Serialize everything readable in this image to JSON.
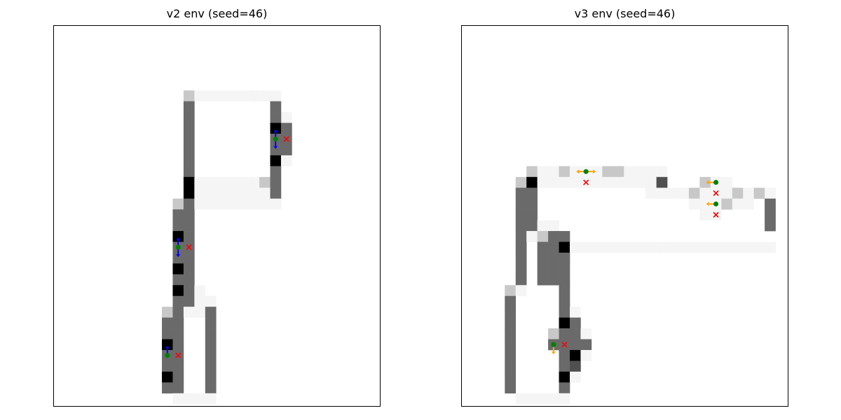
{
  "chart_data": [
    {
      "type": "heatmap",
      "title": "v2 env (seed=46)",
      "xlabel": "",
      "ylabel": "",
      "grid": false,
      "colors": {
        "dark": "#6a6a6a",
        "black": "#000000",
        "light": "#c8c8c8",
        "faint": "#f5f5f5",
        "agent": "#008000",
        "target": "#ff0000",
        "heading": "#0000ff"
      },
      "cells": [
        [
          12,
          6,
          "light"
        ],
        [
          13,
          6,
          "faint"
        ],
        [
          14,
          6,
          "faint"
        ],
        [
          15,
          6,
          "faint"
        ],
        [
          16,
          6,
          "faint"
        ],
        [
          17,
          6,
          "faint"
        ],
        [
          18,
          6,
          "faint"
        ],
        [
          19,
          6,
          "faint"
        ],
        [
          20,
          6,
          "faint"
        ],
        [
          12,
          7,
          "dark"
        ],
        [
          20,
          7,
          "dark"
        ],
        [
          21,
          8,
          "faint"
        ],
        [
          12,
          8,
          "dark"
        ],
        [
          20,
          8,
          "dark"
        ],
        [
          12,
          9,
          "dark"
        ],
        [
          20,
          9,
          "black"
        ],
        [
          21,
          9,
          "dark"
        ],
        [
          12,
          10,
          "dark"
        ],
        [
          20,
          10,
          "dark"
        ],
        [
          21,
          10,
          "dark"
        ],
        [
          12,
          11,
          "dark"
        ],
        [
          20,
          11,
          "dark"
        ],
        [
          21,
          11,
          "dark"
        ],
        [
          12,
          12,
          "dark"
        ],
        [
          20,
          12,
          "black"
        ],
        [
          21,
          12,
          "faint"
        ],
        [
          12,
          13,
          "dark"
        ],
        [
          20,
          13,
          "dark"
        ],
        [
          12,
          14,
          "black"
        ],
        [
          13,
          14,
          "faint"
        ],
        [
          14,
          14,
          "faint"
        ],
        [
          15,
          14,
          "faint"
        ],
        [
          16,
          14,
          "faint"
        ],
        [
          17,
          14,
          "faint"
        ],
        [
          18,
          14,
          "faint"
        ],
        [
          19,
          14,
          "light"
        ],
        [
          20,
          14,
          "dark"
        ],
        [
          12,
          15,
          "black"
        ],
        [
          13,
          15,
          "faint"
        ],
        [
          14,
          15,
          "faint"
        ],
        [
          15,
          15,
          "faint"
        ],
        [
          16,
          15,
          "faint"
        ],
        [
          17,
          15,
          "faint"
        ],
        [
          18,
          15,
          "faint"
        ],
        [
          19,
          15,
          "faint"
        ],
        [
          20,
          15,
          "dark"
        ],
        [
          11,
          16,
          "light"
        ],
        [
          12,
          16,
          "dark"
        ],
        [
          13,
          16,
          "faint"
        ],
        [
          14,
          16,
          "faint"
        ],
        [
          15,
          16,
          "faint"
        ],
        [
          16,
          16,
          "faint"
        ],
        [
          17,
          16,
          "faint"
        ],
        [
          18,
          16,
          "faint"
        ],
        [
          19,
          16,
          "faint"
        ],
        [
          20,
          16,
          "faint"
        ],
        [
          11,
          17,
          "dark"
        ],
        [
          12,
          17,
          "dark"
        ],
        [
          11,
          18,
          "dark"
        ],
        [
          12,
          18,
          "dark"
        ],
        [
          11,
          19,
          "black"
        ],
        [
          12,
          19,
          "dark"
        ],
        [
          11,
          20,
          "dark"
        ],
        [
          12,
          20,
          "dark"
        ],
        [
          11,
          21,
          "dark"
        ],
        [
          12,
          21,
          "dark"
        ],
        [
          11,
          22,
          "black"
        ],
        [
          12,
          22,
          "dark"
        ],
        [
          11,
          23,
          "dark"
        ],
        [
          12,
          23,
          "dark"
        ],
        [
          11,
          24,
          "black"
        ],
        [
          12,
          24,
          "dark"
        ],
        [
          13,
          24,
          "faint"
        ],
        [
          11,
          25,
          "dark"
        ],
        [
          12,
          25,
          "dark"
        ],
        [
          13,
          25,
          "faint"
        ],
        [
          14,
          25,
          "faint"
        ],
        [
          10,
          26,
          "light"
        ],
        [
          11,
          26,
          "dark"
        ],
        [
          12,
          26,
          "faint"
        ],
        [
          13,
          26,
          "faint"
        ],
        [
          14,
          26,
          "dark"
        ],
        [
          10,
          27,
          "dark"
        ],
        [
          11,
          27,
          "dark"
        ],
        [
          14,
          27,
          "dark"
        ],
        [
          10,
          28,
          "dark"
        ],
        [
          11,
          28,
          "dark"
        ],
        [
          14,
          28,
          "dark"
        ],
        [
          10,
          29,
          "black"
        ],
        [
          11,
          29,
          "dark"
        ],
        [
          14,
          29,
          "dark"
        ],
        [
          10,
          30,
          "dark"
        ],
        [
          11,
          30,
          "dark"
        ],
        [
          14,
          30,
          "dark"
        ],
        [
          10,
          31,
          "dark"
        ],
        [
          11,
          31,
          "dark"
        ],
        [
          14,
          31,
          "dark"
        ],
        [
          10,
          32,
          "black"
        ],
        [
          11,
          32,
          "dark"
        ],
        [
          14,
          32,
          "dark"
        ],
        [
          10,
          33,
          "dark"
        ],
        [
          11,
          33,
          "dark"
        ],
        [
          14,
          33,
          "dark"
        ],
        [
          11,
          34,
          "faint"
        ],
        [
          12,
          34,
          "faint"
        ],
        [
          13,
          34,
          "faint"
        ],
        [
          14,
          34,
          "faint"
        ]
      ],
      "agents": [
        {
          "x": 20.5,
          "y": 10.5,
          "dir": "vertical"
        },
        {
          "x": 11.5,
          "y": 20.5,
          "dir": "vertical"
        },
        {
          "x": 10.5,
          "y": 30.5,
          "dir": "up"
        }
      ],
      "targets": [
        {
          "x": 21.5,
          "y": 10.5
        },
        {
          "x": 12.5,
          "y": 20.5
        },
        {
          "x": 11.5,
          "y": 30.5
        }
      ]
    },
    {
      "type": "heatmap",
      "title": "v3 env (seed=46)",
      "xlabel": "",
      "ylabel": "",
      "grid": false,
      "colors": {
        "dark": "#6a6a6a",
        "black": "#000000",
        "light": "#c8c8c8",
        "mid": "#505050",
        "faint": "#f5f5f5",
        "agent": "#008000",
        "target": "#ff0000",
        "heading": "#ffa500"
      },
      "cells": [
        [
          6,
          13,
          "light"
        ],
        [
          7,
          13,
          "faint"
        ],
        [
          8,
          13,
          "faint"
        ],
        [
          9,
          13,
          "light"
        ],
        [
          10,
          13,
          "faint"
        ],
        [
          11,
          13,
          "faint"
        ],
        [
          12,
          13,
          "faint"
        ],
        [
          13,
          13,
          "light"
        ],
        [
          14,
          13,
          "light"
        ],
        [
          15,
          13,
          "faint"
        ],
        [
          16,
          13,
          "faint"
        ],
        [
          17,
          13,
          "faint"
        ],
        [
          18,
          13,
          "faint"
        ],
        [
          5,
          14,
          "light"
        ],
        [
          6,
          14,
          "black"
        ],
        [
          7,
          14,
          "faint"
        ],
        [
          8,
          14,
          "faint"
        ],
        [
          9,
          14,
          "faint"
        ],
        [
          10,
          14,
          "faint"
        ],
        [
          11,
          14,
          "faint"
        ],
        [
          12,
          14,
          "faint"
        ],
        [
          13,
          14,
          "faint"
        ],
        [
          14,
          14,
          "faint"
        ],
        [
          15,
          14,
          "faint"
        ],
        [
          16,
          14,
          "faint"
        ],
        [
          17,
          14,
          "faint"
        ],
        [
          18,
          14,
          "mid"
        ],
        [
          22,
          14,
          "light"
        ],
        [
          23,
          14,
          "faint"
        ],
        [
          24,
          14,
          "faint"
        ],
        [
          5,
          15,
          "dark"
        ],
        [
          6,
          15,
          "dark"
        ],
        [
          17,
          15,
          "faint"
        ],
        [
          18,
          15,
          "faint"
        ],
        [
          19,
          15,
          "faint"
        ],
        [
          20,
          15,
          "faint"
        ],
        [
          21,
          15,
          "light"
        ],
        [
          22,
          15,
          "faint"
        ],
        [
          23,
          15,
          "faint"
        ],
        [
          24,
          15,
          "faint"
        ],
        [
          25,
          15,
          "light"
        ],
        [
          26,
          15,
          "faint"
        ],
        [
          27,
          15,
          "light"
        ],
        [
          28,
          15,
          "faint"
        ],
        [
          5,
          16,
          "dark"
        ],
        [
          6,
          16,
          "dark"
        ],
        [
          21,
          16,
          "faint"
        ],
        [
          22,
          16,
          "faint"
        ],
        [
          23,
          16,
          "faint"
        ],
        [
          24,
          16,
          "light"
        ],
        [
          25,
          16,
          "faint"
        ],
        [
          26,
          16,
          "faint"
        ],
        [
          28,
          16,
          "dark"
        ],
        [
          5,
          17,
          "dark"
        ],
        [
          6,
          17,
          "dark"
        ],
        [
          22,
          17,
          "faint"
        ],
        [
          23,
          17,
          "faint"
        ],
        [
          28,
          17,
          "dark"
        ],
        [
          5,
          18,
          "dark"
        ],
        [
          6,
          18,
          "dark"
        ],
        [
          7,
          18,
          "faint"
        ],
        [
          8,
          18,
          "faint"
        ],
        [
          28,
          18,
          "dark"
        ],
        [
          5,
          19,
          "dark"
        ],
        [
          6,
          19,
          "faint"
        ],
        [
          7,
          19,
          "light"
        ],
        [
          8,
          19,
          "dark"
        ],
        [
          9,
          19,
          "dark"
        ],
        [
          5,
          20,
          "dark"
        ],
        [
          7,
          20,
          "dark"
        ],
        [
          8,
          20,
          "dark"
        ],
        [
          9,
          20,
          "black"
        ],
        [
          10,
          20,
          "faint"
        ],
        [
          11,
          20,
          "faint"
        ],
        [
          12,
          20,
          "faint"
        ],
        [
          13,
          20,
          "faint"
        ],
        [
          14,
          20,
          "faint"
        ],
        [
          15,
          20,
          "faint"
        ],
        [
          16,
          20,
          "faint"
        ],
        [
          17,
          20,
          "faint"
        ],
        [
          18,
          20,
          "faint"
        ],
        [
          19,
          20,
          "faint"
        ],
        [
          20,
          20,
          "faint"
        ],
        [
          21,
          20,
          "faint"
        ],
        [
          22,
          20,
          "faint"
        ],
        [
          23,
          20,
          "faint"
        ],
        [
          24,
          20,
          "faint"
        ],
        [
          25,
          20,
          "faint"
        ],
        [
          26,
          20,
          "faint"
        ],
        [
          27,
          20,
          "faint"
        ],
        [
          28,
          20,
          "faint"
        ],
        [
          5,
          21,
          "dark"
        ],
        [
          7,
          21,
          "dark"
        ],
        [
          8,
          21,
          "dark"
        ],
        [
          9,
          21,
          "dark"
        ],
        [
          5,
          22,
          "dark"
        ],
        [
          7,
          22,
          "dark"
        ],
        [
          8,
          22,
          "dark"
        ],
        [
          9,
          22,
          "dark"
        ],
        [
          5,
          23,
          "dark"
        ],
        [
          7,
          23,
          "dark"
        ],
        [
          8,
          23,
          "dark"
        ],
        [
          9,
          23,
          "dark"
        ],
        [
          4,
          24,
          "light"
        ],
        [
          5,
          24,
          "faint"
        ],
        [
          9,
          24,
          "dark"
        ],
        [
          4,
          25,
          "dark"
        ],
        [
          9,
          25,
          "dark"
        ],
        [
          4,
          26,
          "dark"
        ],
        [
          9,
          26,
          "dark"
        ],
        [
          10,
          26,
          "faint"
        ],
        [
          4,
          27,
          "dark"
        ],
        [
          9,
          27,
          "black"
        ],
        [
          10,
          27,
          "dark"
        ],
        [
          4,
          28,
          "dark"
        ],
        [
          8,
          28,
          "light"
        ],
        [
          9,
          28,
          "dark"
        ],
        [
          10,
          28,
          "dark"
        ],
        [
          11,
          28,
          "faint"
        ],
        [
          4,
          29,
          "dark"
        ],
        [
          8,
          29,
          "dark"
        ],
        [
          9,
          29,
          "dark"
        ],
        [
          10,
          29,
          "dark"
        ],
        [
          11,
          29,
          "dark"
        ],
        [
          4,
          30,
          "dark"
        ],
        [
          9,
          30,
          "dark"
        ],
        [
          10,
          30,
          "black"
        ],
        [
          11,
          30,
          "faint"
        ],
        [
          4,
          31,
          "dark"
        ],
        [
          9,
          31,
          "dark"
        ],
        [
          10,
          31,
          "mid"
        ],
        [
          4,
          32,
          "dark"
        ],
        [
          9,
          32,
          "black"
        ],
        [
          10,
          32,
          "faint"
        ],
        [
          4,
          33,
          "dark"
        ],
        [
          9,
          33,
          "dark"
        ],
        [
          5,
          34,
          "faint"
        ],
        [
          6,
          34,
          "faint"
        ],
        [
          7,
          34,
          "faint"
        ],
        [
          8,
          34,
          "faint"
        ],
        [
          9,
          34,
          "faint"
        ]
      ],
      "agents": [
        {
          "x": 11.5,
          "y": 13.5,
          "dir": "horizontal"
        },
        {
          "x": 23.5,
          "y": 14.5,
          "dir": "left"
        },
        {
          "x": 23.5,
          "y": 16.5,
          "dir": "left"
        },
        {
          "x": 8.5,
          "y": 29.5,
          "dir": "down"
        }
      ],
      "targets": [
        {
          "x": 11.5,
          "y": 14.5
        },
        {
          "x": 23.5,
          "y": 15.5
        },
        {
          "x": 23.5,
          "y": 17.5
        },
        {
          "x": 9.5,
          "y": 29.5
        }
      ]
    }
  ]
}
